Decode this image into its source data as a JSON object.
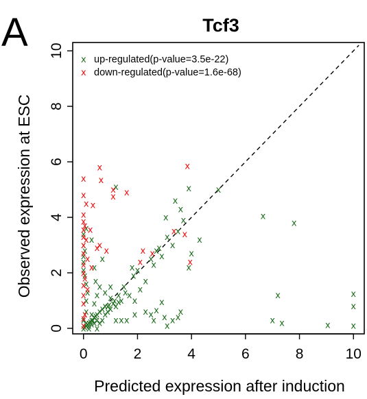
{
  "panel_letter": "A",
  "colors": {
    "up": "#1f6e1f",
    "down": "#ee1111",
    "axis": "#000000",
    "diagonal": "#000000"
  },
  "point_glyph": "x",
  "chart_data": {
    "type": "scatter",
    "title": "Tcf3",
    "xlabel": "Predicted expression after induction",
    "ylabel": "Observed expression at ESC",
    "xlim": [
      -0.4,
      10.4
    ],
    "ylim": [
      -0.2,
      10.3
    ],
    "xticks": [
      0,
      2,
      4,
      6,
      8,
      10
    ],
    "yticks": [
      0,
      2,
      4,
      6,
      8,
      10
    ],
    "grid": false,
    "legend_position": "top-left",
    "reference_line": {
      "type": "diagonal",
      "style": "dashed",
      "from": [
        0,
        0
      ],
      "to": [
        10.2,
        10.2
      ]
    },
    "series": [
      {
        "name": "up-regulated(p-value=3.5e-22)",
        "key": "up",
        "points": [
          [
            1.2,
            5.1
          ],
          [
            3.4,
            4.6
          ],
          [
            3.6,
            4.3
          ],
          [
            3.9,
            5.05
          ],
          [
            5.0,
            5.0
          ],
          [
            3.05,
            4.0
          ],
          [
            3.7,
            3.9
          ],
          [
            3.5,
            3.5
          ],
          [
            3.3,
            3.0
          ],
          [
            4.3,
            3.2
          ],
          [
            4.0,
            2.7
          ],
          [
            2.9,
            2.6
          ],
          [
            2.5,
            2.5
          ],
          [
            2.6,
            2.3
          ],
          [
            6.65,
            4.05
          ],
          [
            7.8,
            3.8
          ],
          [
            3.9,
            2.2
          ],
          [
            1.8,
            2.2
          ],
          [
            1.85,
            1.9
          ],
          [
            1.5,
            1.5
          ],
          [
            2.1,
            1.4
          ],
          [
            1.55,
            1.3
          ],
          [
            1.7,
            1.2
          ],
          [
            1.3,
            1.2
          ],
          [
            1.4,
            1.0
          ],
          [
            1.2,
            0.8
          ],
          [
            1.15,
            1.0
          ],
          [
            1.1,
            0.9
          ],
          [
            1.0,
            1.1
          ],
          [
            0.9,
            0.8
          ],
          [
            0.8,
            0.8
          ],
          [
            0.7,
            0.7
          ],
          [
            0.6,
            0.6
          ],
          [
            0.5,
            0.5
          ],
          [
            0.45,
            0.45
          ],
          [
            0.4,
            0.4
          ],
          [
            0.35,
            0.3
          ],
          [
            0.3,
            0.3
          ],
          [
            0.25,
            0.25
          ],
          [
            0.2,
            0.2
          ],
          [
            0.15,
            0.15
          ],
          [
            0.1,
            0.1
          ],
          [
            0.05,
            0.05
          ],
          [
            0.2,
            0.1
          ],
          [
            0.3,
            0.15
          ],
          [
            0.4,
            0.2
          ],
          [
            0.5,
            0.3
          ],
          [
            0.6,
            0.2
          ],
          [
            0.7,
            0.3
          ],
          [
            0.8,
            0.5
          ],
          [
            0.9,
            0.6
          ],
          [
            1.0,
            0.7
          ],
          [
            2.9,
            0.95
          ],
          [
            3.0,
            0.4
          ],
          [
            3.1,
            0.1
          ],
          [
            3.5,
            0.4
          ],
          [
            3.6,
            0.6
          ],
          [
            3.3,
            0.3
          ],
          [
            2.7,
            0.65
          ],
          [
            2.3,
            0.6
          ],
          [
            2.5,
            0.5
          ],
          [
            1.9,
            0.5
          ],
          [
            1.2,
            0.3
          ],
          [
            1.4,
            0.3
          ],
          [
            1.6,
            0.3
          ],
          [
            7.2,
            1.2
          ],
          [
            7.0,
            0.3
          ],
          [
            7.35,
            0.2
          ],
          [
            9.05,
            0.12
          ],
          [
            10.0,
            1.25
          ],
          [
            10.0,
            0.8
          ],
          [
            10.0,
            0.1
          ],
          [
            1.0,
            1.5
          ],
          [
            0.8,
            1.3
          ],
          [
            0.5,
            1.2
          ],
          [
            0.6,
            1.5
          ],
          [
            0.7,
            2.5
          ],
          [
            0.4,
            0.9
          ],
          [
            0.1,
            0.6
          ],
          [
            0.1,
            1.0
          ],
          [
            0.15,
            1.3
          ],
          [
            0.1,
            1.6
          ],
          [
            0.05,
            1.9
          ],
          [
            0.0,
            2.1
          ],
          [
            0.0,
            2.4
          ],
          [
            0.0,
            2.6
          ],
          [
            0.05,
            2.8
          ],
          [
            0.0,
            3.0
          ],
          [
            0.0,
            3.4
          ],
          [
            0.1,
            3.6
          ],
          [
            0.3,
            3.2
          ],
          [
            0.4,
            2.2
          ],
          [
            0.45,
            1.7
          ],
          [
            0.0,
            0.3
          ],
          [
            0.05,
            0.5
          ],
          [
            0.1,
            0.2
          ],
          [
            0.0,
            0.0
          ],
          [
            0.2,
            0.0
          ],
          [
            0.5,
            0.0
          ],
          [
            0.3,
            0.5
          ],
          [
            1.9,
            1.0
          ],
          [
            2.3,
            1.7
          ],
          [
            2.0,
            2.1
          ],
          [
            2.7,
            2.8
          ],
          [
            2.8,
            2.9
          ],
          [
            3.1,
            3.3
          ],
          [
            1.3,
            0.95
          ],
          [
            0.95,
            0.85
          ],
          [
            2.6,
            0.3
          ]
        ]
      },
      {
        "name": "down-regulated(p-value=1.6e-68)",
        "key": "down",
        "points": [
          [
            3.85,
            5.85
          ],
          [
            0.6,
            5.8
          ],
          [
            0.0,
            5.4
          ],
          [
            0.65,
            5.35
          ],
          [
            1.1,
            5.0
          ],
          [
            1.6,
            4.9
          ],
          [
            0.0,
            4.8
          ],
          [
            0.1,
            4.5
          ],
          [
            0.35,
            4.45
          ],
          [
            1.1,
            4.75
          ],
          [
            0.0,
            4.1
          ],
          [
            0.0,
            3.85
          ],
          [
            0.05,
            3.7
          ],
          [
            0.0,
            3.55
          ],
          [
            0.25,
            3.55
          ],
          [
            0.0,
            3.3
          ],
          [
            0.6,
            3.0
          ],
          [
            0.5,
            2.9
          ],
          [
            0.85,
            2.8
          ],
          [
            0.0,
            2.7
          ],
          [
            0.15,
            2.5
          ],
          [
            0.0,
            2.3
          ],
          [
            0.3,
            2.2
          ],
          [
            0.0,
            2.0
          ],
          [
            0.05,
            1.8
          ],
          [
            0.0,
            1.55
          ],
          [
            0.15,
            1.4
          ],
          [
            0.0,
            1.2
          ],
          [
            0.0,
            0.9
          ],
          [
            0.05,
            0.5
          ],
          [
            0.0,
            0.35
          ],
          [
            2.2,
            2.8
          ],
          [
            2.55,
            2.7
          ],
          [
            3.35,
            3.5
          ],
          [
            3.95,
            2.4
          ],
          [
            3.75,
            3.4
          ],
          [
            2.1,
            2.4
          ],
          [
            0.0,
            3.0
          ],
          [
            0.1,
            3.2
          ],
          [
            0.0,
            0.1
          ]
        ]
      }
    ]
  }
}
